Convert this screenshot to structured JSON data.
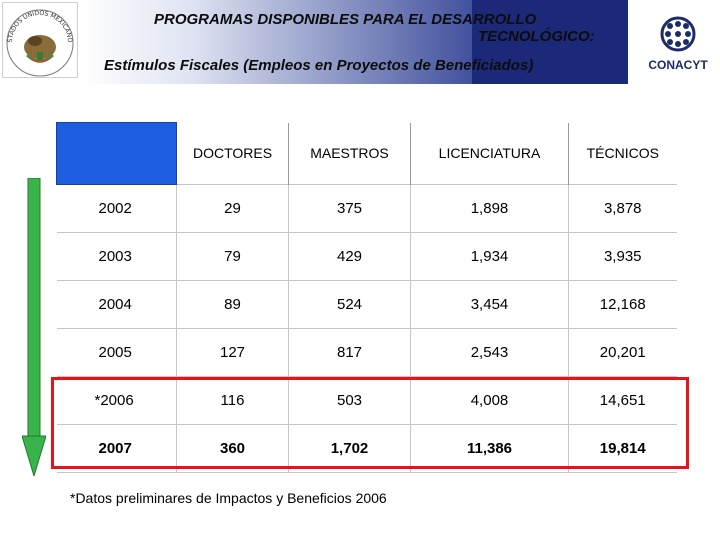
{
  "header": {
    "title_line1": "PROGRAMAS DISPONIBLES PARA EL DESARROLLO",
    "title_line2": "TECNOLÓGICO:",
    "subtitle": "Estímulos Fiscales (Empleos en Proyectos de Beneficiados)",
    "seal_text": "ESTADOS UNIDOS MEXICANOS",
    "logo_text": "CONACYT"
  },
  "colors": {
    "banner_dark": "#1c2978",
    "table_corner": "#1e5fe0",
    "highlight": "#e4141c",
    "arrow": "#38b44a"
  },
  "table": {
    "columns": [
      "",
      "DOCTORES",
      "MAESTROS",
      "LICENCIATURA",
      "TÉCNICOS"
    ],
    "rows": [
      [
        "2002",
        "29",
        "375",
        "1,898",
        "3,878"
      ],
      [
        "2003",
        "79",
        "429",
        "1,934",
        "3,935"
      ],
      [
        "2004",
        "89",
        "524",
        "3,454",
        "12,168"
      ],
      [
        "2005",
        "127",
        "817",
        "2,543",
        "20,201"
      ],
      [
        "*2006",
        "116",
        "503",
        "4,008",
        "14,651"
      ],
      [
        "2007",
        "360",
        "1,702",
        "11,386",
        "19,814"
      ]
    ]
  },
  "footnote": "*Datos preliminares de Impactos y Beneficios 2006"
}
